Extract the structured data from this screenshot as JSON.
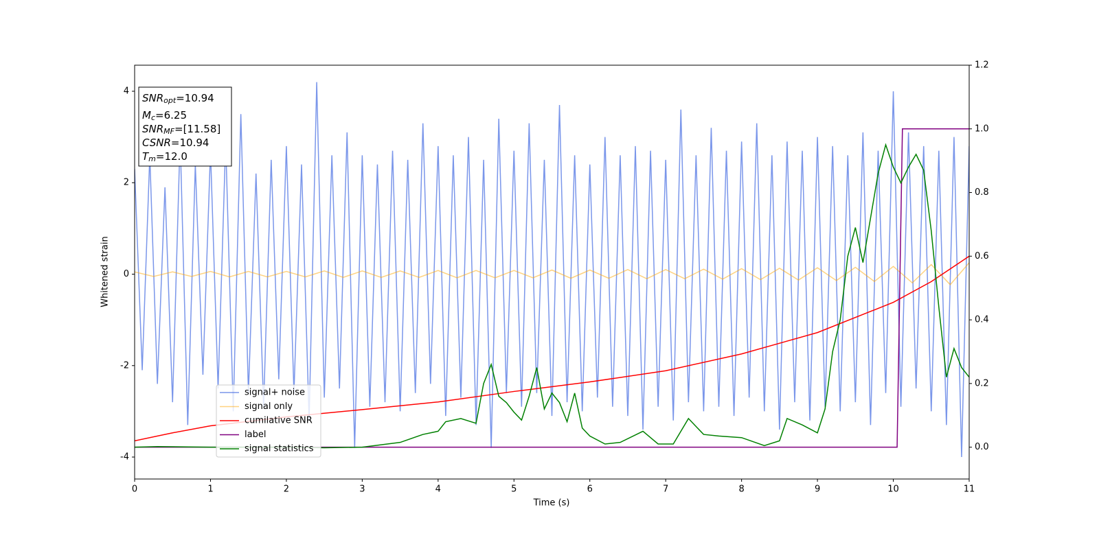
{
  "chart_data": {
    "type": "line",
    "xlabel": "Time (s)",
    "ylabel": "Whitened strain",
    "xlim": [
      0,
      11
    ],
    "ylim": [
      -4.48,
      4.57
    ],
    "y2lim": [
      -0.1,
      1.2
    ],
    "xticks": [
      0,
      1,
      2,
      3,
      4,
      5,
      6,
      7,
      8,
      9,
      10,
      11
    ],
    "yticks": [
      -4,
      -2,
      0,
      2,
      4
    ],
    "y2ticks": [
      {
        "value": 0,
        "label": "0.0"
      },
      0.2,
      0.4,
      0.6,
      0.8,
      {
        "value": 1,
        "label": "1.0"
      },
      1.2
    ],
    "legend": "lower left",
    "annotations": [
      {
        "base": "SNR",
        "sub": "opt",
        "rest": "=10.94"
      },
      {
        "base": "M",
        "sub": "c",
        "rest": "=6.25"
      },
      {
        "base": "SNR",
        "sub": "MF",
        "rest": "=[11.58]"
      },
      {
        "base": "CSNR",
        "rest": "=10.94"
      },
      {
        "base": "T",
        "sub": "m",
        "rest": "=12.0"
      }
    ],
    "series": [
      {
        "name": "signal+ noise",
        "color": "#4169e1",
        "alpha": 0.7,
        "axis": "y",
        "x": [
          0,
          0.1,
          0.2,
          0.3,
          0.4,
          0.5,
          0.6,
          0.7,
          0.8,
          0.9,
          1,
          1.1,
          1.2,
          1.3,
          1.4,
          1.5,
          1.6,
          1.7,
          1.8,
          1.9,
          2,
          2.1,
          2.2,
          2.3,
          2.4,
          2.5,
          2.6,
          2.7,
          2.8,
          2.9,
          3,
          3.1,
          3.2,
          3.3,
          3.4,
          3.5,
          3.6,
          3.7,
          3.8,
          3.9,
          4,
          4.1,
          4.2,
          4.3,
          4.4,
          4.5,
          4.6,
          4.7,
          4.8,
          4.9,
          5,
          5.1,
          5.2,
          5.3,
          5.4,
          5.5,
          5.6,
          5.7,
          5.8,
          5.9,
          6,
          6.1,
          6.2,
          6.3,
          6.4,
          6.5,
          6.6,
          6.7,
          6.8,
          6.9,
          7,
          7.1,
          7.2,
          7.3,
          7.4,
          7.5,
          7.6,
          7.7,
          7.8,
          7.9,
          8,
          8.1,
          8.2,
          8.3,
          8.4,
          8.5,
          8.6,
          8.7,
          8.8,
          8.9,
          9,
          9.1,
          9.2,
          9.3,
          9.4,
          9.5,
          9.6,
          9.7,
          9.8,
          9.9,
          10,
          10.1,
          10.2,
          10.3,
          10.4,
          10.5,
          10.6,
          10.7,
          10.8,
          10.9,
          11
        ],
        "values": [
          2.3,
          -2.1,
          2.6,
          -2.4,
          1.9,
          -2.8,
          3.0,
          -3.3,
          2.4,
          -2.2,
          2.7,
          -2.5,
          2.9,
          -3.0,
          3.5,
          -2.6,
          2.2,
          -2.9,
          2.5,
          -2.3,
          2.8,
          -2.6,
          2.4,
          -3.2,
          4.2,
          -2.7,
          2.6,
          -2.5,
          3.1,
          -3.8,
          2.6,
          -2.9,
          2.4,
          -2.8,
          2.7,
          -3.0,
          2.5,
          -2.6,
          3.3,
          -2.4,
          2.8,
          -3.1,
          2.6,
          -2.7,
          3.0,
          -3.3,
          2.5,
          -3.8,
          3.4,
          -2.6,
          2.7,
          -2.9,
          3.3,
          -2.6,
          2.5,
          -3.1,
          3.7,
          -2.8,
          2.6,
          -3.0,
          2.4,
          -2.7,
          3.0,
          -2.9,
          2.6,
          -3.1,
          2.8,
          -3.4,
          2.7,
          -2.9,
          2.5,
          -3.2,
          3.6,
          -2.8,
          2.6,
          -3.0,
          3.2,
          -2.9,
          2.7,
          -3.1,
          2.9,
          -2.7,
          3.3,
          -3.0,
          2.6,
          -3.4,
          2.9,
          -2.8,
          2.7,
          -3.2,
          3.0,
          -2.9,
          2.8,
          -3.0,
          2.6,
          -2.8,
          3.1,
          -3.3,
          2.7,
          -2.6,
          4.0,
          -2.9,
          3.1,
          -2.5,
          2.8,
          -3.0,
          2.7,
          -3.3,
          3.0,
          -4.0,
          2.8
        ]
      },
      {
        "name": "signal only",
        "color": "#ffa500",
        "alpha": 0.5,
        "axis": "y",
        "x": [
          0,
          0.25,
          0.5,
          0.75,
          1,
          1.25,
          1.5,
          1.75,
          2,
          2.25,
          2.5,
          2.75,
          3,
          3.25,
          3.5,
          3.75,
          4,
          4.25,
          4.5,
          4.75,
          5,
          5.25,
          5.5,
          5.75,
          6,
          6.25,
          6.5,
          6.75,
          7,
          7.25,
          7.5,
          7.75,
          8,
          8.25,
          8.5,
          8.75,
          9,
          9.25,
          9.5,
          9.75,
          10,
          10.25,
          10.5,
          10.75,
          11
        ],
        "values": [
          0.05,
          -0.05,
          0.05,
          -0.05,
          0.06,
          -0.06,
          0.06,
          -0.06,
          0.06,
          -0.06,
          0.07,
          -0.07,
          0.07,
          -0.07,
          0.07,
          -0.07,
          0.08,
          -0.08,
          0.08,
          -0.08,
          0.08,
          -0.08,
          0.09,
          -0.09,
          0.09,
          -0.09,
          0.1,
          -0.1,
          0.1,
          -0.1,
          0.11,
          -0.11,
          0.12,
          -0.12,
          0.13,
          -0.13,
          0.14,
          -0.14,
          0.15,
          -0.16,
          0.17,
          -0.19,
          0.21,
          -0.23,
          0.25
        ]
      },
      {
        "name": "cumilative SNR",
        "color": "#ff0000",
        "alpha": 1,
        "axis": "y2",
        "x": [
          0,
          0.5,
          1,
          2,
          3,
          4,
          5,
          6,
          7,
          8,
          9,
          10,
          10.5,
          11
        ],
        "values": [
          0.02,
          0.045,
          0.067,
          0.095,
          0.118,
          0.142,
          0.175,
          0.205,
          0.24,
          0.293,
          0.36,
          0.455,
          0.52,
          0.6
        ]
      },
      {
        "name": "label",
        "color": "#800080",
        "alpha": 1,
        "axis": "y2",
        "x": [
          0,
          10.05,
          10.12,
          11
        ],
        "values": [
          0,
          0,
          1,
          1
        ]
      },
      {
        "name": "signal statistics",
        "color": "#008000",
        "alpha": 1,
        "axis": "y2",
        "x": [
          0,
          0.3,
          1,
          2,
          2.5,
          3,
          3.5,
          3.8,
          4,
          4.1,
          4.3,
          4.5,
          4.6,
          4.7,
          4.8,
          4.9,
          5,
          5.1,
          5.2,
          5.3,
          5.4,
          5.5,
          5.6,
          5.7,
          5.8,
          5.9,
          6,
          6.2,
          6.4,
          6.7,
          6.9,
          7.1,
          7.3,
          7.5,
          7.7,
          8,
          8.3,
          8.5,
          8.6,
          8.8,
          9,
          9.1,
          9.2,
          9.3,
          9.4,
          9.5,
          9.6,
          9.7,
          9.8,
          9.9,
          10,
          10.1,
          10.2,
          10.3,
          10.4,
          10.5,
          10.6,
          10.7,
          10.8,
          10.9,
          11
        ],
        "values": [
          0,
          0.002,
          0,
          0,
          -0.002,
          0,
          0.015,
          0.04,
          0.05,
          0.08,
          0.09,
          0.075,
          0.2,
          0.26,
          0.16,
          0.14,
          0.11,
          0.085,
          0.16,
          0.25,
          0.12,
          0.17,
          0.14,
          0.08,
          0.17,
          0.06,
          0.035,
          0.01,
          0.015,
          0.05,
          0.01,
          0.01,
          0.09,
          0.04,
          0.035,
          0.03,
          0.005,
          0.02,
          0.09,
          0.07,
          0.045,
          0.12,
          0.3,
          0.4,
          0.6,
          0.69,
          0.58,
          0.72,
          0.86,
          0.95,
          0.88,
          0.83,
          0.88,
          0.92,
          0.87,
          0.68,
          0.44,
          0.22,
          0.31,
          0.25,
          0.22
        ]
      }
    ]
  }
}
